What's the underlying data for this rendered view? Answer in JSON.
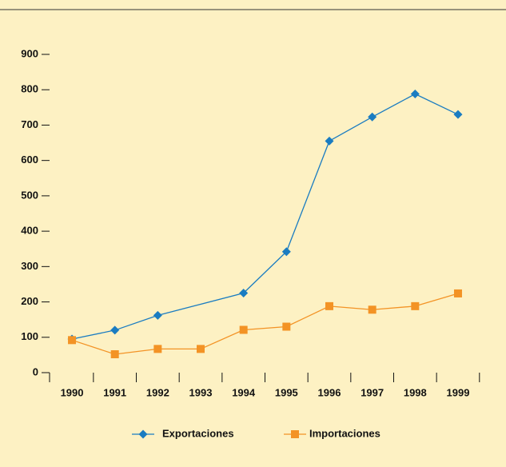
{
  "chart_data": {
    "type": "line",
    "xlim": [
      1989.5,
      1999.5
    ],
    "xticks": [
      1990,
      1991,
      1992,
      1993,
      1994,
      1995,
      1996,
      1997,
      1998,
      1999
    ],
    "ylim": [
      0,
      900
    ],
    "yticks": [
      0,
      100,
      200,
      300,
      400,
      500,
      600,
      700,
      800,
      900
    ],
    "series": [
      {
        "name": "Exportaciones",
        "color": "#1a7cc1",
        "marker": "diamond",
        "x": [
          1990,
          1991,
          1992,
          1994,
          1995,
          1996,
          1997,
          1998,
          1999
        ],
        "values": [
          95,
          120,
          162,
          225,
          342,
          655,
          723,
          788,
          730
        ]
      },
      {
        "name": "Importaciones",
        "color": "#f39325",
        "marker": "square",
        "x": [
          1990,
          1991,
          1992,
          1993,
          1994,
          1995,
          1996,
          1997,
          1998,
          1999
        ],
        "values": [
          92,
          52,
          67,
          67,
          121,
          130,
          188,
          178,
          188,
          224
        ]
      }
    ]
  }
}
